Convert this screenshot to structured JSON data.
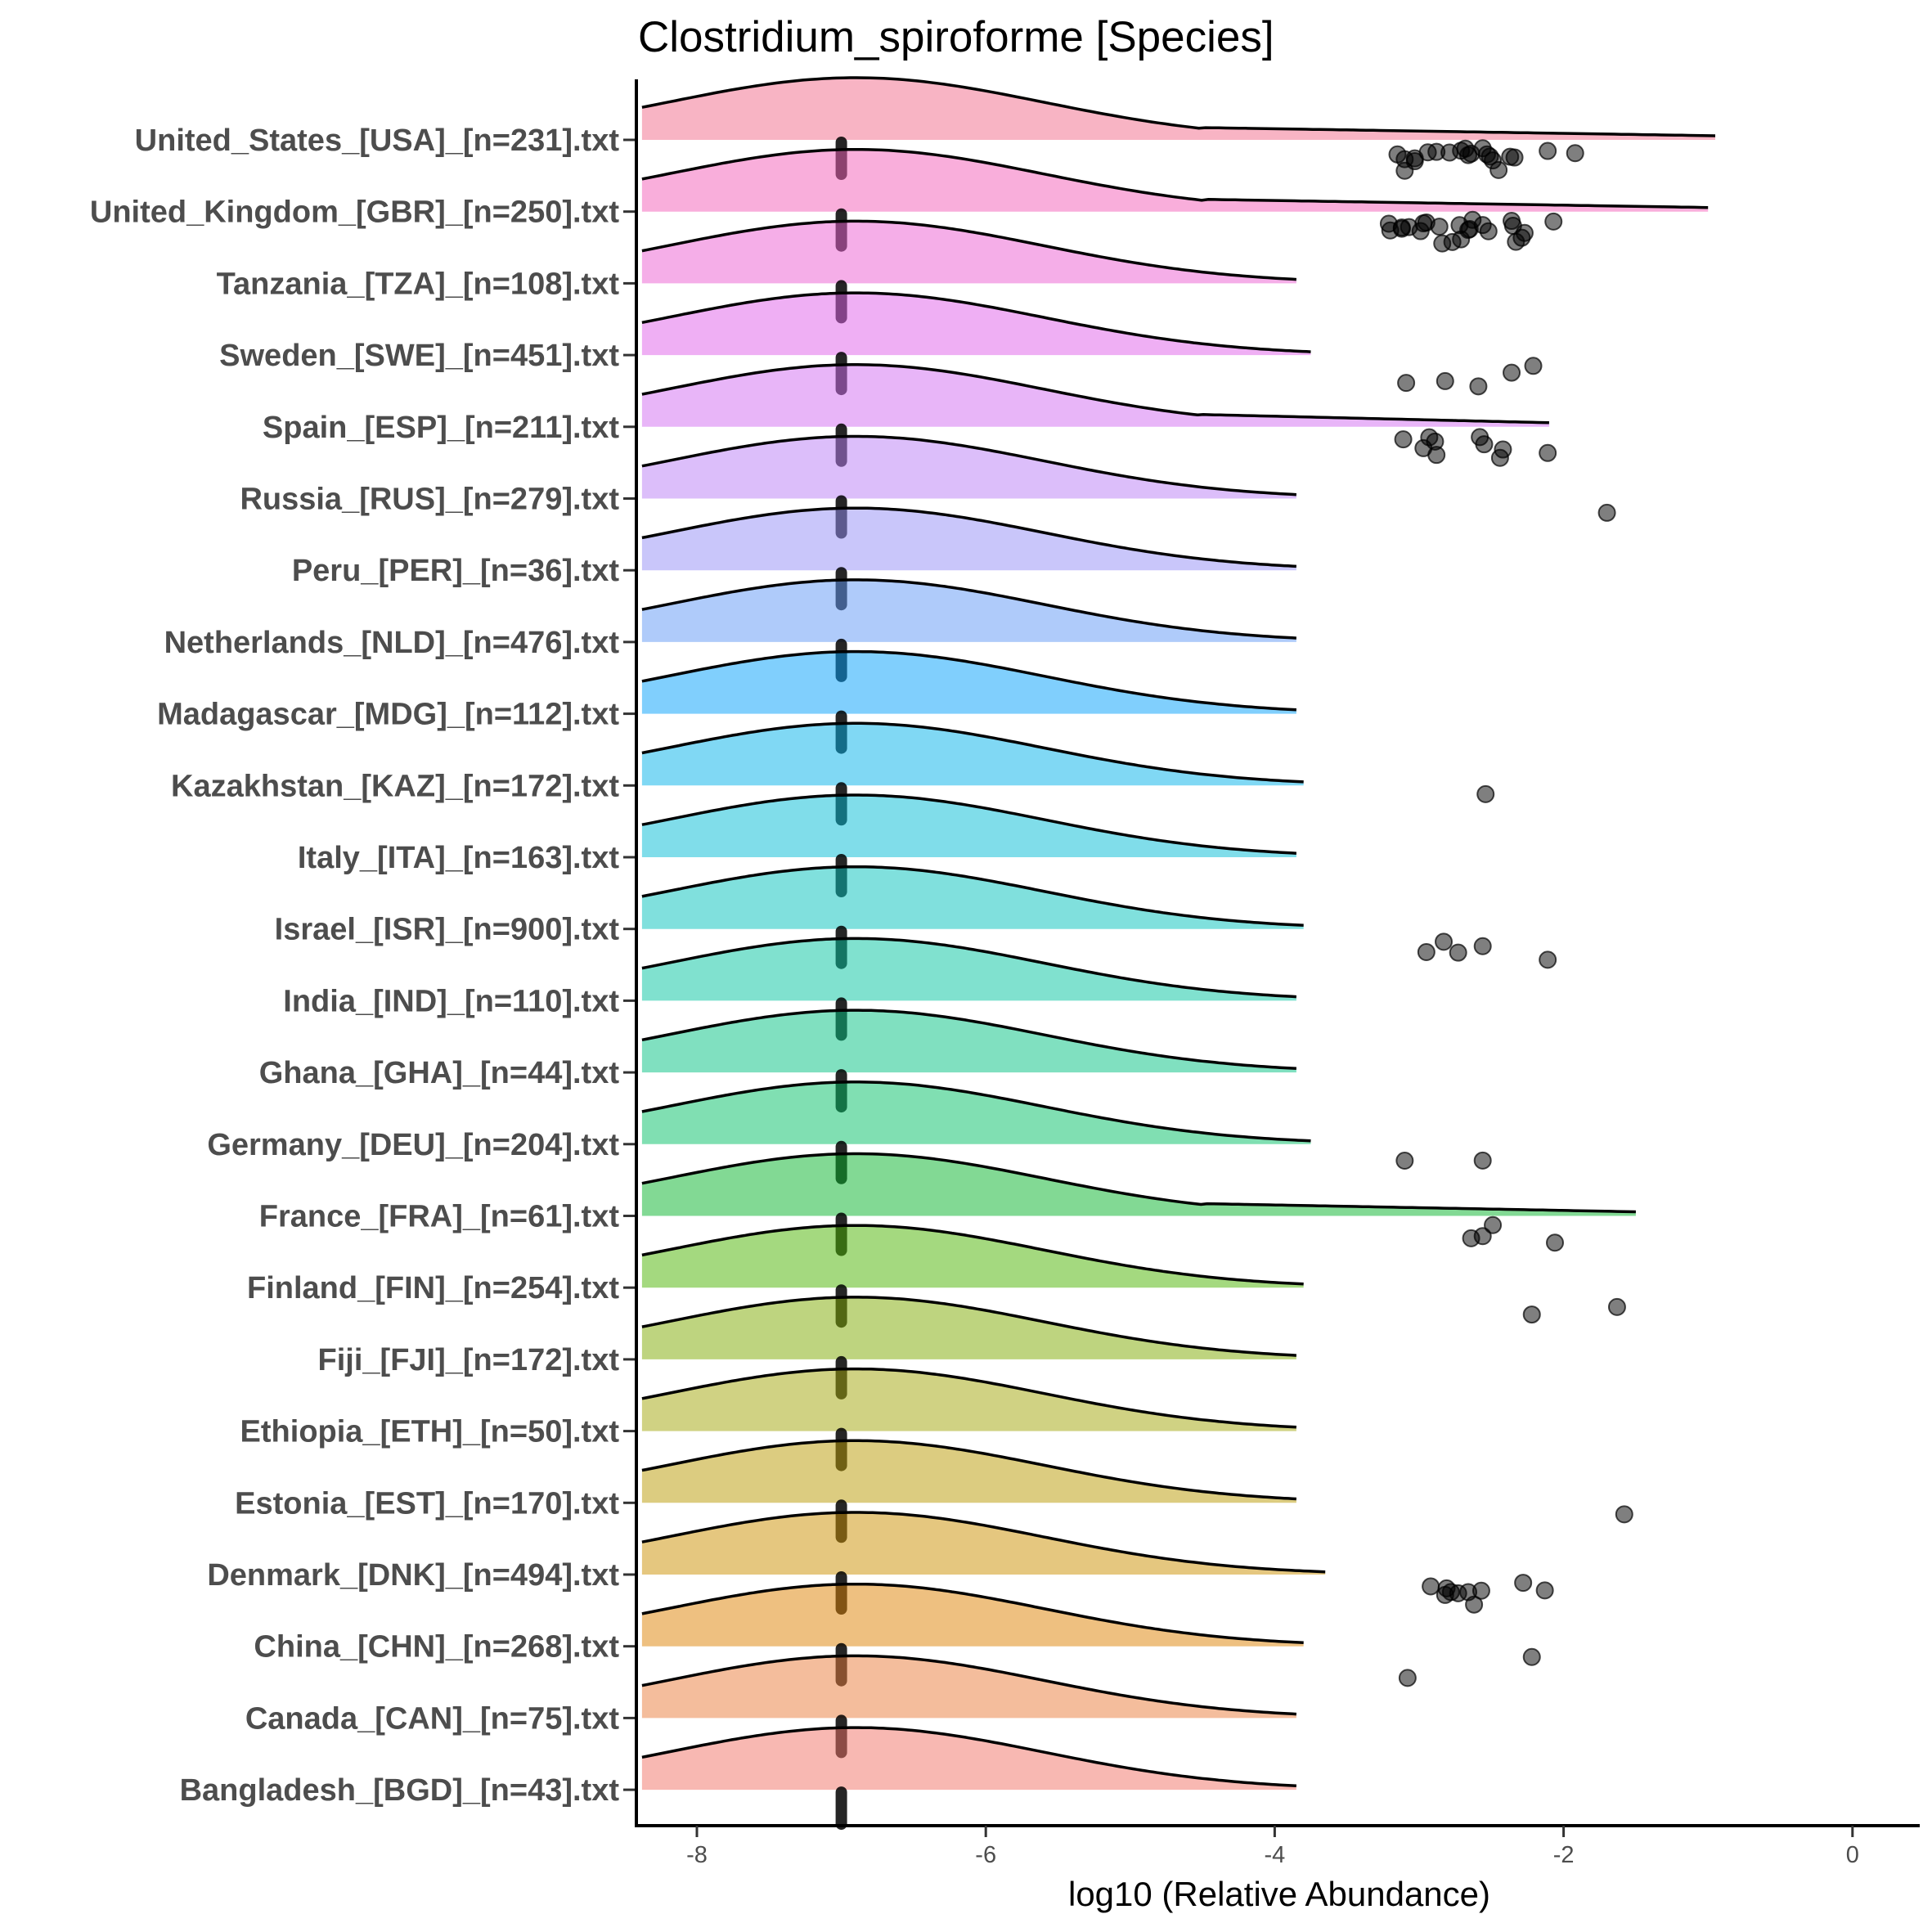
{
  "chart_data": {
    "type": "ridgeline",
    "title": "Clostridium_spiroforme [Species]",
    "xlabel": "log10 (Relative Abundance)",
    "ylabel": "",
    "xlim": [
      -8.4,
      0.45
    ],
    "xticks": [
      -8,
      -6,
      -4,
      -2,
      0
    ],
    "xtick_labels": [
      "-8",
      "-6",
      "-4",
      "-2",
      "0"
    ],
    "density_mode": -6.9,
    "density_sd": 1.3,
    "rows": [
      {
        "label": "United_States_[USA]_[n=231].txt",
        "color": "#F8B4C4",
        "median": -7,
        "density_end": -0.95,
        "tail": true,
        "points": [
          -3.15,
          -3.1,
          -3.03,
          -2.94,
          -2.88,
          -2.79,
          -2.71,
          -2.68,
          -2.66,
          -2.64,
          -2.56,
          -2.53,
          -2.51,
          -2.49,
          -2.45,
          -2.37,
          -2.34,
          -3.1,
          -3.03,
          -2.11,
          -1.92
        ]
      },
      {
        "label": "United_Kingdom_[GBR]_[n=250].txt",
        "color": "#F9AEDB",
        "median": -7,
        "density_end": -1.0,
        "tail": true,
        "points": [
          -3.2,
          -3.12,
          -3.07,
          -2.99,
          -2.95,
          -2.84,
          -2.77,
          -2.71,
          -2.66,
          -2.63,
          -2.56,
          -2.52,
          -2.36,
          -2.33,
          -2.29,
          -2.27,
          -3.21,
          -3.12,
          -2.97,
          -2.86,
          -2.72,
          -2.65,
          -2.35,
          -2.07
        ]
      },
      {
        "label": "Tanzania_[TZA]_[n=108].txt",
        "color": "#F5AEE8",
        "median": -7,
        "density_end": -3.85,
        "tail": false,
        "points": []
      },
      {
        "label": "Sweden_[SWE]_[n=451].txt",
        "color": "#EFAFF4",
        "median": -7,
        "density_end": -3.75,
        "tail": false,
        "points": [
          -2.82,
          -2.59,
          -2.36,
          -2.21,
          -3.09
        ]
      },
      {
        "label": "Spain_[ESP]_[n=211].txt",
        "color": "#E8B5F8",
        "median": -7,
        "density_end": -2.1,
        "tail": true,
        "points": [
          -3.11,
          -2.97,
          -2.93,
          -2.89,
          -2.88,
          -2.58,
          -2.55,
          -2.44,
          -2.42,
          -2.11
        ]
      },
      {
        "label": "Russia_[RUS]_[n=279].txt",
        "color": "#DCBEFA",
        "median": -7,
        "density_end": -3.85,
        "tail": false,
        "points": [
          -1.7
        ]
      },
      {
        "label": "Peru_[PER]_[n=36].txt",
        "color": "#C9C6FA",
        "median": -7,
        "density_end": -3.85,
        "tail": false,
        "points": []
      },
      {
        "label": "Netherlands_[NLD]_[n=476].txt",
        "color": "#AFCBFA",
        "median": -7,
        "density_end": -3.85,
        "tail": false,
        "points": []
      },
      {
        "label": "Madagascar_[MDG]_[n=112].txt",
        "color": "#80CFFD",
        "median": -7,
        "density_end": -3.85,
        "tail": false,
        "points": []
      },
      {
        "label": "Kazakhstan_[KAZ]_[n=172].txt",
        "color": "#80D8F4",
        "median": -7,
        "density_end": -3.8,
        "tail": false,
        "points": [
          -2.54
        ]
      },
      {
        "label": "Italy_[ITA]_[n=163].txt",
        "color": "#80DDEA",
        "median": -7,
        "density_end": -3.85,
        "tail": false,
        "points": []
      },
      {
        "label": "Israel_[ISR]_[n=900].txt",
        "color": "#80E0DD",
        "median": -7,
        "density_end": -3.8,
        "tail": false,
        "points": [
          -2.95,
          -2.83,
          -2.73,
          -2.56,
          -2.11
        ]
      },
      {
        "label": "India_[IND]_[n=110].txt",
        "color": "#80E1CF",
        "median": -7,
        "density_end": -3.85,
        "tail": false,
        "points": []
      },
      {
        "label": "Ghana_[GHA]_[n=44].txt",
        "color": "#80E0C0",
        "median": -7,
        "density_end": -3.85,
        "tail": false,
        "points": []
      },
      {
        "label": "Germany_[DEU]_[n=204].txt",
        "color": "#80DFB2",
        "median": -7,
        "density_end": -3.75,
        "tail": false,
        "points": [
          -3.1,
          -2.56
        ]
      },
      {
        "label": "France_[FRA]_[n=61].txt",
        "color": "#82D994",
        "median": -7,
        "density_end": -1.5,
        "tail": true,
        "points": [
          -2.64,
          -2.49,
          -2.56,
          -2.06
        ]
      },
      {
        "label": "Finland_[FIN]_[n=254].txt",
        "color": "#A4D97E",
        "median": -7,
        "density_end": -3.8,
        "tail": false,
        "points": [
          -2.22,
          -1.63
        ]
      },
      {
        "label": "Fiji_[FJI]_[n=172].txt",
        "color": "#BED47D",
        "median": -7,
        "density_end": -3.85,
        "tail": false,
        "points": []
      },
      {
        "label": "Ethiopia_[ETH]_[n=50].txt",
        "color": "#D0D283",
        "median": -7,
        "density_end": -3.85,
        "tail": false,
        "points": []
      },
      {
        "label": "Estonia_[EST]_[n=170].txt",
        "color": "#DCCC80",
        "median": -7,
        "density_end": -3.85,
        "tail": false,
        "points": [
          -1.58
        ]
      },
      {
        "label": "Denmark_[DNK]_[n=494].txt",
        "color": "#E5C77F",
        "median": -7,
        "density_end": -3.65,
        "tail": false,
        "points": [
          -2.92,
          -2.82,
          -2.78,
          -2.73,
          -2.66,
          -2.62,
          -2.57,
          -2.81,
          -2.28,
          -2.13
        ]
      },
      {
        "label": "China_[CHN]_[n=268].txt",
        "color": "#EEC080",
        "median": -7,
        "density_end": -3.8,
        "tail": false,
        "points": [
          -3.08,
          -2.22
        ]
      },
      {
        "label": "Canada_[CAN]_[n=75].txt",
        "color": "#F4BD9C",
        "median": -7,
        "density_end": -3.85,
        "tail": false,
        "points": []
      },
      {
        "label": "Bangladesh_[BGD]_[n=43].txt",
        "color": "#F8B8B2",
        "median": -7,
        "density_end": -3.85,
        "tail": false,
        "points": []
      }
    ]
  }
}
